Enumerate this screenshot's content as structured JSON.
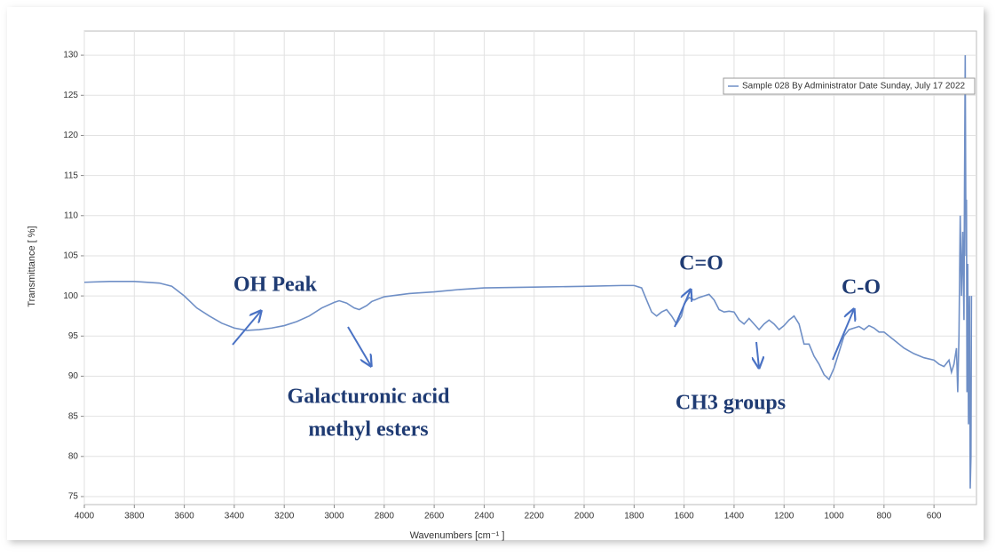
{
  "chart_data": {
    "type": "line",
    "xlabel": "Wavenumbers [cm⁻¹ ]",
    "ylabel": "Transmittance [ %]",
    "xlim": [
      4000,
      430
    ],
    "ylim": [
      74,
      133
    ],
    "xticks": [
      4000,
      3800,
      3600,
      3400,
      3200,
      3000,
      2800,
      2600,
      2400,
      2200,
      2000,
      1800,
      1600,
      1400,
      1200,
      1000,
      800,
      600
    ],
    "yticks": [
      75,
      80,
      85,
      90,
      95,
      100,
      105,
      110,
      115,
      120,
      125,
      130
    ],
    "grid": true,
    "legend_position": "upper right",
    "x": [
      4000,
      3900,
      3800,
      3700,
      3650,
      3600,
      3550,
      3500,
      3450,
      3400,
      3350,
      3300,
      3250,
      3200,
      3150,
      3100,
      3050,
      3000,
      2980,
      2950,
      2920,
      2900,
      2870,
      2850,
      2800,
      2700,
      2600,
      2500,
      2400,
      2200,
      2000,
      1850,
      1800,
      1770,
      1750,
      1730,
      1710,
      1690,
      1670,
      1650,
      1630,
      1610,
      1600,
      1580,
      1560,
      1540,
      1520,
      1500,
      1480,
      1460,
      1440,
      1420,
      1400,
      1380,
      1360,
      1340,
      1320,
      1300,
      1280,
      1260,
      1240,
      1220,
      1200,
      1180,
      1160,
      1140,
      1120,
      1100,
      1080,
      1060,
      1040,
      1020,
      1000,
      980,
      960,
      940,
      920,
      900,
      880,
      860,
      840,
      820,
      800,
      760,
      720,
      680,
      640,
      600,
      580,
      560,
      540,
      530,
      520,
      510,
      505,
      500,
      495,
      490,
      485,
      480,
      478,
      475,
      472,
      470,
      468,
      465,
      462,
      460,
      458,
      455,
      452,
      450
    ],
    "series": [
      {
        "name": "Sample 028 By Administrator Date Sunday, July 17 2022",
        "color": "#6f8fc6",
        "values": [
          101.7,
          101.8,
          101.8,
          101.6,
          101.2,
          100,
          98.5,
          97.5,
          96.6,
          96,
          95.7,
          95.8,
          96,
          96.3,
          96.8,
          97.5,
          98.5,
          99.2,
          99.4,
          99.1,
          98.5,
          98.3,
          98.8,
          99.3,
          99.9,
          100.3,
          100.5,
          100.8,
          101,
          101.1,
          101.2,
          101.3,
          101.3,
          101,
          99.5,
          98,
          97.5,
          98,
          98.3,
          97.5,
          96.5,
          97.5,
          99,
          99.8,
          99.5,
          99.8,
          100,
          100.2,
          99.5,
          98.3,
          98,
          98.1,
          98,
          97,
          96.5,
          97.2,
          96.5,
          95.8,
          96.5,
          97,
          96.5,
          95.8,
          96.3,
          97,
          97.5,
          96.5,
          94,
          94,
          92.5,
          91.5,
          90.2,
          89.6,
          91,
          93,
          95,
          95.8,
          96,
          96.2,
          95.8,
          96.3,
          96,
          95.5,
          95.5,
          94.5,
          93.5,
          92.8,
          92.3,
          92,
          91.5,
          91.2,
          92,
          90.5,
          91.5,
          93.5,
          88,
          95,
          110,
          100,
          108,
          97,
          113,
          130,
          105,
          112,
          88,
          104,
          84,
          95,
          100,
          76,
          80,
          100
        ]
      }
    ],
    "annotations": [
      {
        "lines": [
          "OH Peak"
        ]
      },
      {
        "lines": [
          "Galacturonic acid",
          "methyl esters"
        ]
      },
      {
        "lines": [
          "C=O"
        ]
      },
      {
        "lines": [
          "CH3 groups"
        ]
      },
      {
        "lines": [
          "C-O"
        ]
      }
    ]
  }
}
